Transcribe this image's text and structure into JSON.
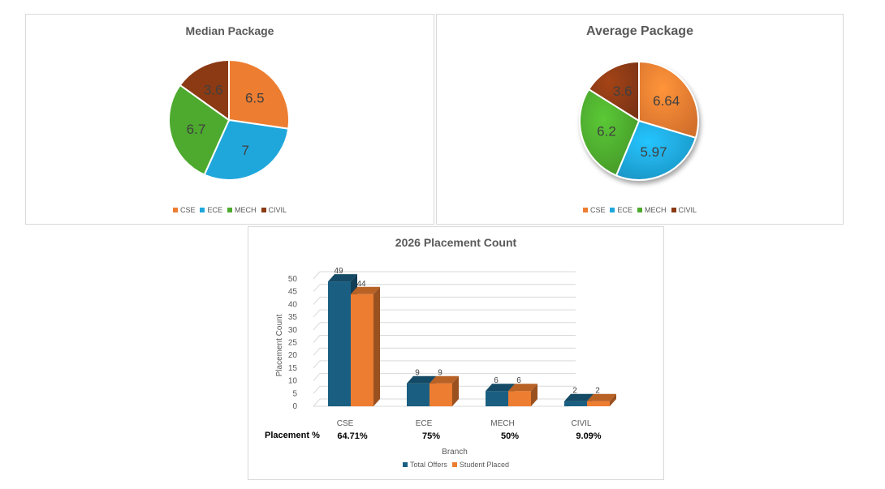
{
  "colors": {
    "CSE": "#ed7d31",
    "ECE": "#1fa7dc",
    "MECH": "#4daa2e",
    "CIVIL": "#8b3a14",
    "total_offers": "#1a5f82",
    "student_placed": "#ed7d31"
  },
  "chart_data": [
    {
      "type": "pie",
      "title": "Median Package",
      "categories": [
        "CSE",
        "ECE",
        "MECH",
        "CIVIL"
      ],
      "values": [
        6.5,
        7,
        6.7,
        3.6
      ],
      "legend_position": "bottom"
    },
    {
      "type": "pie",
      "title": "Average Package",
      "categories": [
        "CSE",
        "ECE",
        "MECH",
        "CIVIL"
      ],
      "values": [
        6.64,
        5.97,
        6.2,
        3.6
      ],
      "legend_position": "bottom",
      "style": "3d"
    },
    {
      "type": "bar",
      "title": "2026 Placement Count",
      "categories": [
        "CSE",
        "ECE",
        "MECH",
        "CIVIL"
      ],
      "series": [
        {
          "name": "Total Offers",
          "values": [
            49,
            9,
            6,
            2
          ]
        },
        {
          "name": "Student Placed",
          "values": [
            44,
            9,
            6,
            2
          ]
        }
      ],
      "xlabel": "Branch",
      "ylabel": "Placement Count",
      "ylim": [
        0,
        50
      ],
      "yticks": [
        0,
        5,
        10,
        15,
        20,
        25,
        30,
        35,
        40,
        45,
        50
      ],
      "grid": true,
      "legend_position": "bottom",
      "style": "3d",
      "annotation_label": "Placement %",
      "annotations": [
        "64.71%",
        "75%",
        "50%",
        "9.09%"
      ]
    }
  ]
}
